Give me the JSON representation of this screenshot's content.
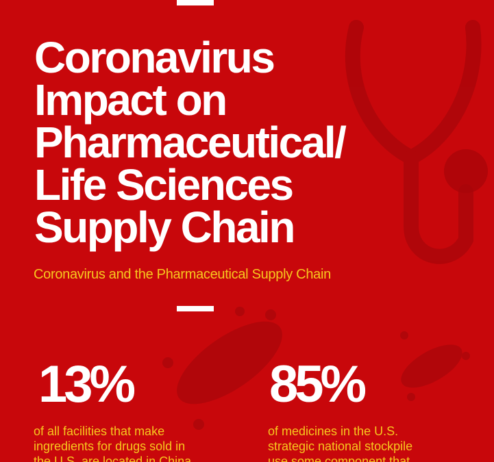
{
  "header": {
    "title_lines": [
      "Coronavirus",
      "Impact on",
      "Pharmaceutical/",
      "Life Sciences",
      "Supply Chain"
    ],
    "subtitle": "Coronavirus and the Pharmaceutical Supply Chain"
  },
  "stats": [
    {
      "value": "13%",
      "description_lines": [
        "of all facilities that make",
        "ingredients for drugs sold in",
        "the U.S. are located in China"
      ]
    },
    {
      "value": "85%",
      "description_lines": [
        "of medicines in the U.S.",
        "strategic national stockpile",
        "use some component that"
      ]
    }
  ]
}
